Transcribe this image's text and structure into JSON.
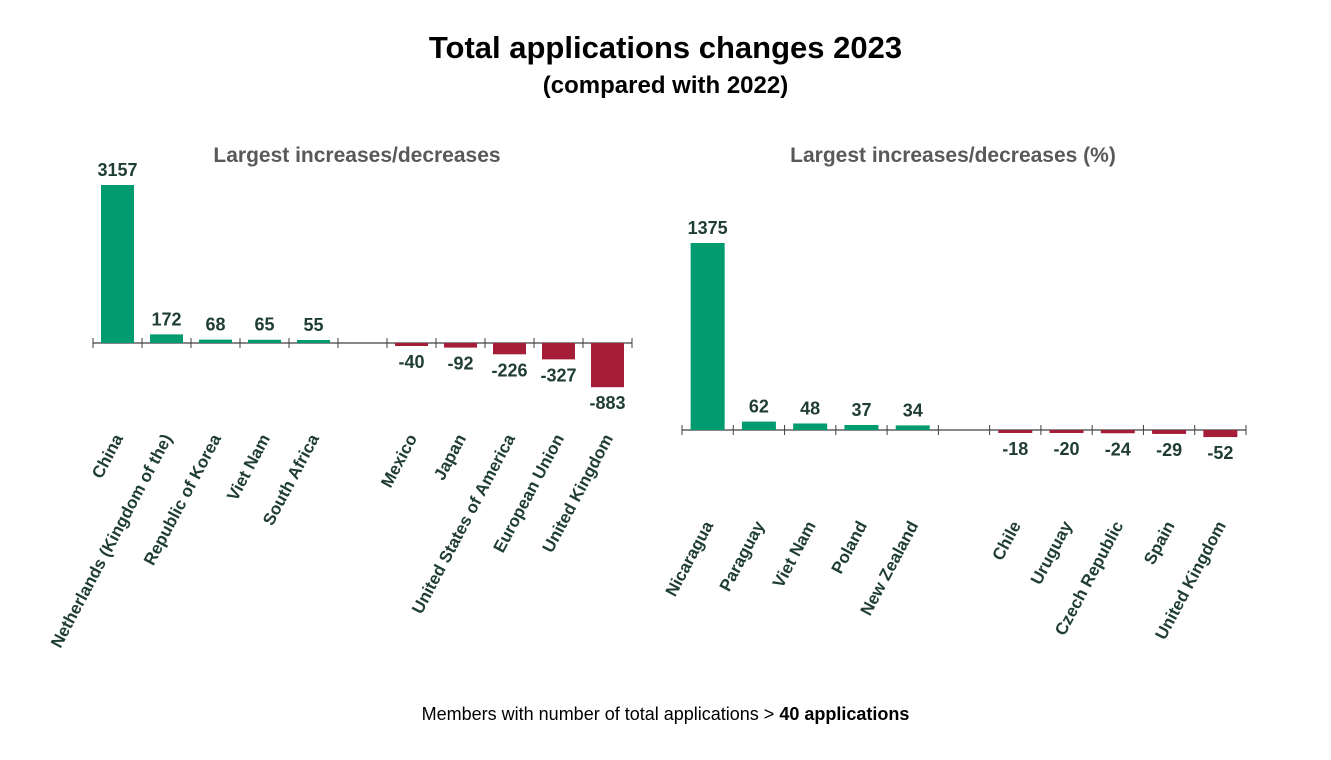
{
  "title": "Total applications changes 2023",
  "subtitle": "(compared with 2022)",
  "footnote": {
    "prefix": "Members with number of total applications > ",
    "bold": "40 applications"
  },
  "colors": {
    "increase": "#009b6e",
    "decrease": "#a51d36",
    "axis": "#404040"
  },
  "chart_data": [
    {
      "type": "bar",
      "title": "Largest increases/decreases",
      "categories": [
        "China",
        "Netherlands (Kingdom of the)",
        "Republic of Korea",
        "Viet Nam",
        "South Africa",
        "",
        "Mexico",
        "Japan",
        "United States of America",
        "European Union",
        "United Kingdom"
      ],
      "values": [
        3157,
        172,
        68,
        65,
        55,
        null,
        -40,
        -92,
        -226,
        -327,
        -883
      ],
      "ylim": [
        -883,
        3157
      ],
      "grid": false,
      "legend": "none"
    },
    {
      "type": "bar",
      "title": "Largest increases/decreases (%)",
      "categories": [
        "Nicaragua",
        "Paraguay",
        "Viet Nam",
        "Poland",
        "New Zealand",
        "",
        "Chile",
        "Uruguay",
        "Czech Republic",
        "Spain",
        "United Kingdom"
      ],
      "values": [
        1375,
        62,
        48,
        37,
        34,
        null,
        -18,
        -20,
        -24,
        -29,
        -52
      ],
      "ylim": [
        -52,
        1375
      ],
      "grid": false,
      "legend": "none"
    }
  ]
}
